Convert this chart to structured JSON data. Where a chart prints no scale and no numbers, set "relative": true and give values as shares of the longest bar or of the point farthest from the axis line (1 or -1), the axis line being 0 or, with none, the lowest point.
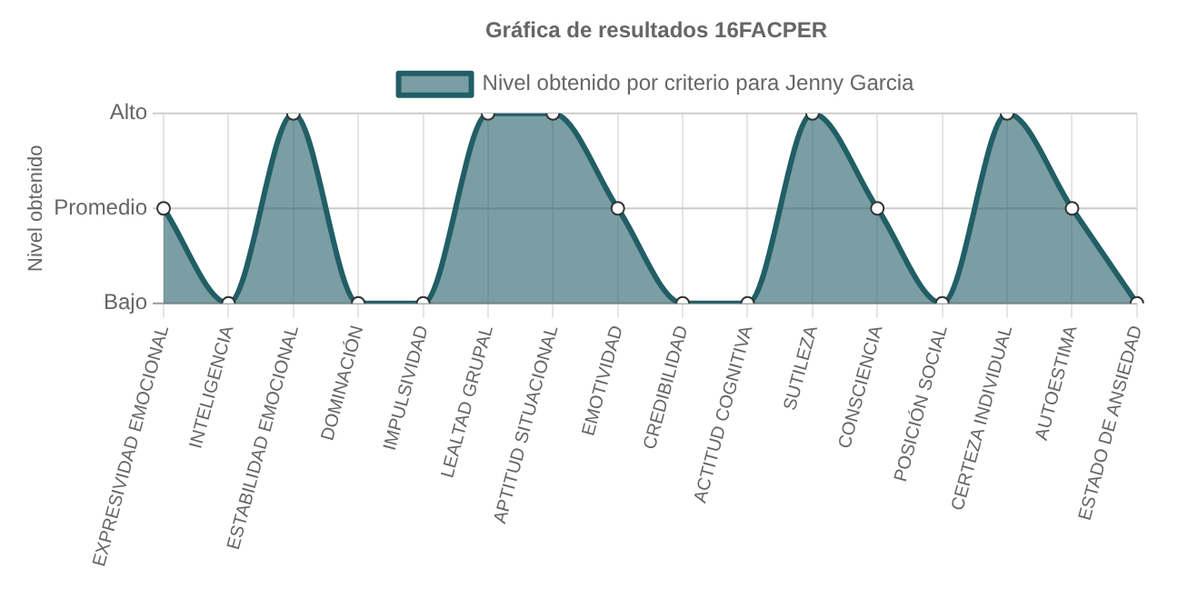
{
  "chart_data": {
    "type": "area",
    "title": "Gráfica de resultados 16FACPER",
    "ylabel": "Nivel obtenido",
    "relative": true,
    "categories": [
      "EXPRESIVIDAD EMOCIONAL",
      "INTELIGENCIA",
      "ESTABILIDAD EMOCIONAL",
      "DOMINACIÓN",
      "IMPULSIVIDAD",
      "LEALTAD GRUPAL",
      "APTITUD SITUACIONAL",
      "EMOTIVIDAD",
      "CREDIBILIDAD",
      "ACTITUD COGNITIVA",
      "SUTILEZA",
      "CONSCIENCIA",
      "POSICIÓN SOCIAL",
      "CERTEZA INDIVIDUAL",
      "AUTOESTIMA",
      "ESTADO DE ANSIEDAD"
    ],
    "series": [
      {
        "name": "Nivel obtenido por criterio para Jenny Garcia",
        "color": "#215e66",
        "values": [
          0.5,
          0,
          1,
          0,
          0,
          1,
          1,
          0.5,
          0,
          0,
          1,
          0.5,
          0,
          1,
          0.5,
          0
        ]
      }
    ],
    "ref_lines": [
      {
        "axis": "y",
        "value": 0,
        "label": "Bajo",
        "color": "#999999"
      },
      {
        "axis": "y",
        "value": 0.5,
        "label": "Promedio",
        "color": "#cccccc"
      },
      {
        "axis": "y",
        "value": 1,
        "label": "Alto",
        "color": "#cccccc"
      }
    ],
    "grid": "x",
    "legend": "top",
    "marker": "circle"
  }
}
